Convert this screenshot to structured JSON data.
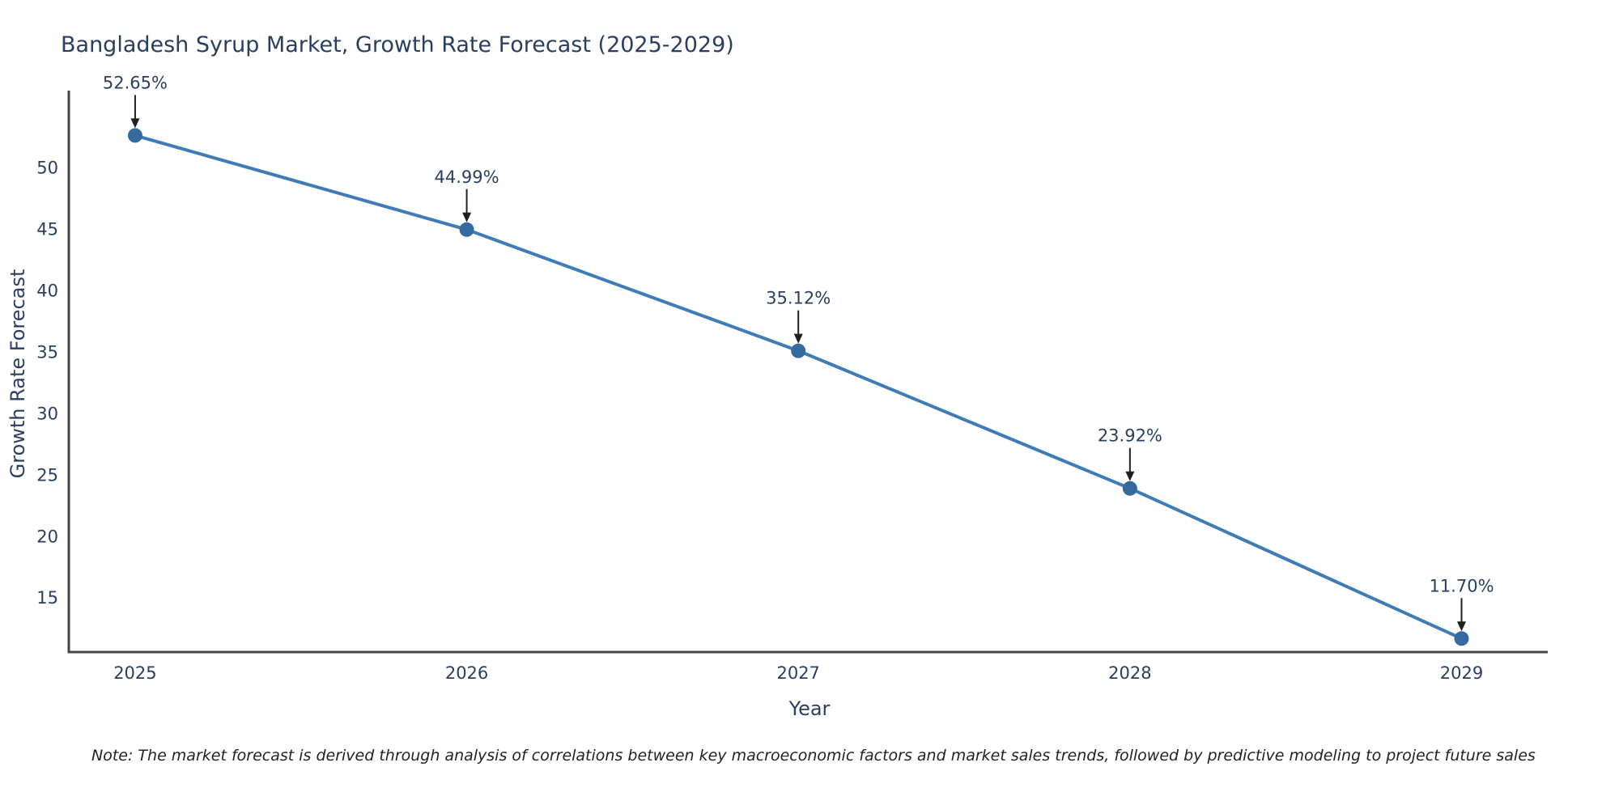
{
  "note": "Note: The market forecast is derived through analysis of correlations between key macroeconomic factors and market sales trends, followed by predictive modeling to project future sales",
  "chart_data": {
    "type": "line",
    "title": "Bangladesh Syrup Market, Growth Rate Forecast (2025-2029)",
    "xlabel": "Year",
    "ylabel": "Growth Rate Forecast",
    "x": [
      2025,
      2026,
      2027,
      2028,
      2029
    ],
    "series": [
      {
        "name": "Growth Rate Forecast",
        "values": [
          52.65,
          44.99,
          35.12,
          23.92,
          11.7
        ]
      }
    ],
    "point_labels": [
      "52.65%",
      "44.99%",
      "35.12%",
      "23.92%",
      "11.70%"
    ],
    "xticks": [
      "2025",
      "2026",
      "2027",
      "2028",
      "2029"
    ],
    "yticks": [
      15,
      20,
      25,
      30,
      35,
      40,
      45,
      50
    ],
    "xlim": [
      2024.8,
      2029.26
    ],
    "ylim": [
      10.6,
      56.3
    ],
    "grid": false,
    "legend": false,
    "line_color": "#3f7bb6",
    "marker_color": "#366a9f",
    "annotation_arrow_color": "#1f1f1f",
    "text_color": "#2a3f5f",
    "axis_color": "#444444"
  }
}
